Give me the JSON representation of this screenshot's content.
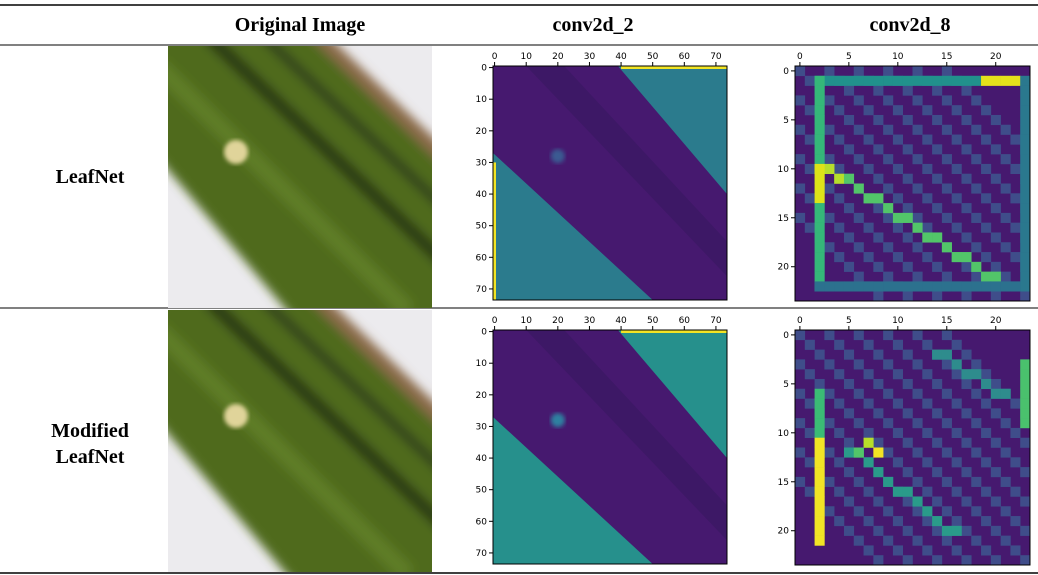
{
  "header": {
    "columns": [
      "Original Image",
      "conv2d_2",
      "conv2d_8"
    ]
  },
  "rows": [
    {
      "label": "LeafNet"
    },
    {
      "label": "Modified LeafNet"
    }
  ],
  "axes": {
    "conv2d_2": {
      "lim": [
        -0.5,
        73.5
      ],
      "xticks": [
        0,
        10,
        20,
        30,
        40,
        50,
        60,
        70
      ],
      "yticks": [
        0,
        10,
        20,
        30,
        40,
        50,
        60,
        70
      ]
    },
    "conv2d_8": {
      "lim": [
        -0.5,
        23.5
      ],
      "xticks": [
        0,
        5,
        10,
        15,
        20
      ],
      "yticks": [
        0,
        5,
        10,
        15,
        20
      ]
    }
  }
}
